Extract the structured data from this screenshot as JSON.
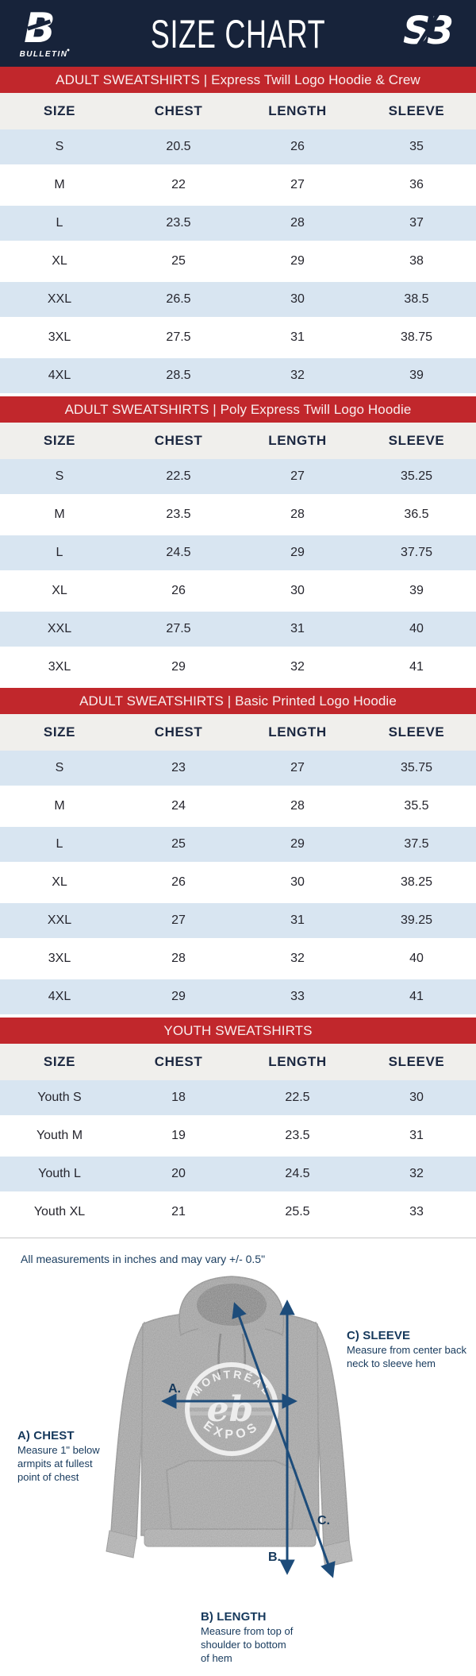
{
  "header": {
    "title": "SIZE CHART",
    "brand_left_mark": "B",
    "brand_left_name": "BULLETIN",
    "brand_right_mark": "S3"
  },
  "tables": [
    {
      "banner": "ADULT SWEATSHIRTS | Express Twill Logo Hoodie & Crew",
      "columns": [
        "SIZE",
        "CHEST",
        "LENGTH",
        "SLEEVE"
      ],
      "rows": [
        [
          "S",
          "20.5",
          "26",
          "35"
        ],
        [
          "M",
          "22",
          "27",
          "36"
        ],
        [
          "L",
          "23.5",
          "28",
          "37"
        ],
        [
          "XL",
          "25",
          "29",
          "38"
        ],
        [
          "XXL",
          "26.5",
          "30",
          "38.5"
        ],
        [
          "3XL",
          "27.5",
          "31",
          "38.75"
        ],
        [
          "4XL",
          "28.5",
          "32",
          "39"
        ]
      ]
    },
    {
      "banner": "ADULT SWEATSHIRTS | Poly Express Twill Logo Hoodie",
      "columns": [
        "SIZE",
        "CHEST",
        "LENGTH",
        "SLEEVE"
      ],
      "rows": [
        [
          "S",
          "22.5",
          "27",
          "35.25"
        ],
        [
          "M",
          "23.5",
          "28",
          "36.5"
        ],
        [
          "L",
          "24.5",
          "29",
          "37.75"
        ],
        [
          "XL",
          "26",
          "30",
          "39"
        ],
        [
          "XXL",
          "27.5",
          "31",
          "40"
        ],
        [
          "3XL",
          "29",
          "32",
          "41"
        ]
      ]
    },
    {
      "banner": "ADULT SWEATSHIRTS | Basic Printed Logo Hoodie",
      "columns": [
        "SIZE",
        "CHEST",
        "LENGTH",
        "SLEEVE"
      ],
      "rows": [
        [
          "S",
          "23",
          "27",
          "35.75"
        ],
        [
          "M",
          "24",
          "28",
          "35.5"
        ],
        [
          "L",
          "25",
          "29",
          "37.5"
        ],
        [
          "XL",
          "26",
          "30",
          "38.25"
        ],
        [
          "XXL",
          "27",
          "31",
          "39.25"
        ],
        [
          "3XL",
          "28",
          "32",
          "40"
        ],
        [
          "4XL",
          "29",
          "33",
          "41"
        ]
      ]
    },
    {
      "banner": "YOUTH SWEATSHIRTS",
      "columns": [
        "SIZE",
        "CHEST",
        "LENGTH",
        "SLEEVE"
      ],
      "rows": [
        [
          "Youth S",
          "18",
          "22.5",
          "30"
        ],
        [
          "Youth M",
          "19",
          "23.5",
          "31"
        ],
        [
          "Youth L",
          "20",
          "24.5",
          "32"
        ],
        [
          "Youth XL",
          "21",
          "25.5",
          "33"
        ]
      ]
    }
  ],
  "note": "All measurements in inches and may vary +/- 0.5\"",
  "diagram": {
    "logo_top": "MONTRÉAL",
    "logo_bottom": "EXPOS",
    "logo_glyph": "eb",
    "markers": {
      "a": "A.",
      "b": "B.",
      "c": "C."
    },
    "chest_title": "A) CHEST",
    "chest_desc": "Measure 1\" below armpits at fullest point of chest",
    "length_title": "B) LENGTH",
    "length_desc": "Measure from top of shoulder to bottom of hem",
    "sleeve_title": "C) SLEEVE",
    "sleeve_desc": "Measure from center back neck to sleeve hem"
  },
  "colors": {
    "navy_header": "#17233a",
    "banner_red": "#c1272c",
    "row_blue": "#d8e5f1",
    "thead_gray": "#f0efec",
    "label_navy": "#16395c",
    "arrow_navy": "#1d4c7a"
  }
}
